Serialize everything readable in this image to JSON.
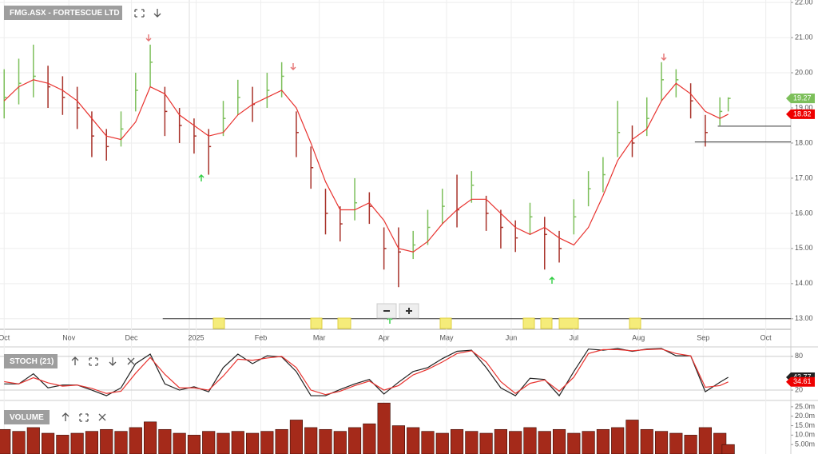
{
  "chart_data": [
    {
      "type": "ohlc",
      "title": "FMG.ASX - FORTESCUE LTD",
      "x": [
        0,
        7,
        14,
        21,
        28,
        35,
        42,
        49,
        56,
        63,
        70,
        77,
        84,
        91,
        98,
        105,
        112,
        119,
        126,
        133,
        140,
        147,
        154,
        161,
        168,
        175,
        182,
        189,
        196,
        203,
        210,
        217,
        224,
        231,
        238,
        245,
        252,
        259,
        266,
        273,
        280,
        287,
        294,
        301,
        308,
        315,
        322,
        329,
        336,
        343,
        347
      ],
      "xlim": [
        -2,
        377
      ],
      "xticks": [
        {
          "value": 0,
          "label": "Oct"
        },
        {
          "value": 31,
          "label": "Nov"
        },
        {
          "value": 61,
          "label": "Dec"
        },
        {
          "value": 92,
          "label": "2025"
        },
        {
          "value": 123,
          "label": "Feb"
        },
        {
          "value": 151,
          "label": "Mar"
        },
        {
          "value": 182,
          "label": "Apr"
        },
        {
          "value": 212,
          "label": "May"
        },
        {
          "value": 243,
          "label": "Jun"
        },
        {
          "value": 273,
          "label": "Jul"
        },
        {
          "value": 304,
          "label": "Aug"
        },
        {
          "value": 335,
          "label": "Sep"
        },
        {
          "value": 365,
          "label": "Oct"
        }
      ],
      "ylim": [
        12.7,
        22.07
      ],
      "yticks": [
        {
          "value": 13,
          "label": "13.00"
        },
        {
          "value": 14,
          "label": "14.00"
        },
        {
          "value": 15,
          "label": "15.00"
        },
        {
          "value": 16,
          "label": "16.00"
        },
        {
          "value": 17,
          "label": "17.00"
        },
        {
          "value": 18,
          "label": "18.00"
        },
        {
          "value": 19,
          "label": "19.00"
        },
        {
          "value": 20,
          "label": "20.00"
        },
        {
          "value": 21,
          "label": "21.00"
        },
        {
          "value": 22,
          "label": "22.00"
        }
      ],
      "grid": true,
      "series": [
        {
          "type": "ohlc",
          "color": "#7cbf5a",
          "down_color": "#a8322a",
          "high": [
            20.1,
            20.4,
            20.8,
            20.2,
            19.9,
            19.6,
            18.9,
            18.4,
            18.9,
            20.0,
            20.8,
            19.6,
            19.0,
            18.7,
            18.4,
            19.2,
            19.8,
            19.6,
            20.0,
            20.3,
            18.9,
            17.9,
            16.7,
            16.2,
            17.0,
            16.6,
            15.6,
            15.6,
            15.5,
            16.1,
            16.7,
            17.1,
            17.2,
            16.5,
            16.1,
            15.8,
            16.3,
            15.9,
            15.5,
            16.4,
            17.2,
            17.6,
            19.2,
            18.5,
            19.3,
            20.3,
            20.1,
            19.7,
            18.8,
            19.3,
            19.3
          ],
          "low": [
            18.7,
            19.1,
            19.3,
            19.0,
            18.8,
            18.4,
            17.6,
            17.5,
            17.9,
            18.9,
            19.6,
            18.2,
            18.0,
            17.7,
            17.1,
            18.2,
            18.8,
            18.6,
            19.0,
            19.3,
            17.6,
            16.7,
            15.4,
            15.2,
            15.8,
            15.7,
            14.4,
            13.9,
            14.7,
            15.1,
            15.7,
            15.6,
            16.3,
            15.5,
            15.0,
            14.9,
            15.4,
            14.4,
            14.6,
            15.4,
            16.2,
            16.6,
            17.6,
            17.6,
            18.2,
            19.2,
            19.3,
            18.7,
            17.9,
            18.5,
            18.9
          ],
          "values": [
            19.3,
            19.7,
            19.9,
            19.6,
            19.3,
            19.0,
            18.2,
            17.9,
            18.4,
            19.5,
            20.3,
            18.9,
            18.5,
            18.2,
            17.9,
            18.7,
            19.3,
            19.1,
            19.5,
            19.9,
            18.3,
            17.3,
            16.0,
            15.7,
            16.3,
            16.2,
            15.0,
            14.9,
            15.1,
            15.6,
            16.2,
            16.1,
            16.8,
            16.0,
            15.6,
            15.3,
            15.9,
            15.4,
            15.0,
            15.9,
            16.7,
            17.1,
            18.3,
            18.0,
            18.7,
            19.8,
            19.8,
            19.2,
            18.3,
            18.9,
            19.27
          ]
        },
        {
          "type": "line",
          "color": "#e8332f",
          "values": [
            19.2,
            19.6,
            19.8,
            19.7,
            19.5,
            19.2,
            18.7,
            18.2,
            18.1,
            18.6,
            19.6,
            19.4,
            18.8,
            18.5,
            18.2,
            18.3,
            18.8,
            19.1,
            19.3,
            19.5,
            19.0,
            18.0,
            16.9,
            16.1,
            16.1,
            16.3,
            15.8,
            15.0,
            14.9,
            15.2,
            15.7,
            16.1,
            16.4,
            16.4,
            16.0,
            15.6,
            15.4,
            15.6,
            15.3,
            15.1,
            15.6,
            16.5,
            17.5,
            18.1,
            18.4,
            19.2,
            19.7,
            19.4,
            18.9,
            18.7,
            18.82
          ]
        }
      ],
      "hlines": [
        {
          "value": 13.0,
          "x": 76
        },
        {
          "value": 18.03,
          "x": 331
        },
        {
          "value": 18.48,
          "x": 342
        }
      ]
    },
    {
      "type": "line",
      "title": "STOCH (21)",
      "ylim": [
        3,
        94
      ],
      "yticks": [
        20,
        80
      ],
      "series": [
        {
          "color": "#222222",
          "values": [
            31,
            31,
            49,
            24,
            29,
            29,
            20,
            10,
            24,
            67,
            84,
            31,
            20,
            26,
            17,
            60,
            84,
            67,
            81,
            79,
            53,
            10,
            10,
            21,
            31,
            39,
            13,
            34,
            53,
            60,
            76,
            89,
            91,
            60,
            24,
            10,
            41,
            39,
            10,
            53,
            93,
            91,
            94,
            89,
            93,
            94,
            81,
            81,
            17,
            34,
            42.77
          ]
        },
        {
          "color": "#e8332f",
          "values": [
            35,
            31,
            42,
            33,
            27,
            29,
            23,
            14,
            18,
            50,
            78,
            48,
            24,
            24,
            20,
            45,
            75,
            73,
            77,
            80,
            60,
            20,
            12,
            18,
            28,
            36,
            20,
            28,
            47,
            57,
            70,
            85,
            90,
            70,
            35,
            14,
            32,
            38,
            18,
            43,
            85,
            92,
            92,
            90,
            92,
            93,
            85,
            81,
            25,
            28,
            34.61
          ]
        }
      ]
    },
    {
      "type": "bar",
      "title": "VOLUME",
      "color": "#a52a1a",
      "ylim": [
        0,
        27.5
      ],
      "yticks": [
        {
          "value": 5,
          "label": "5.00m"
        },
        {
          "value": 10,
          "label": "10.0m"
        },
        {
          "value": 15,
          "label": "15.0m"
        },
        {
          "value": 20,
          "label": "20.0m"
        },
        {
          "value": 25,
          "label": "25.0m"
        }
      ],
      "values": [
        13,
        12,
        14,
        11,
        10,
        11,
        12,
        13,
        12,
        14,
        17,
        13,
        11,
        10,
        12,
        11,
        12,
        11,
        12,
        13,
        18,
        14,
        13,
        12,
        14,
        16,
        27,
        15,
        14,
        12,
        11,
        13,
        12,
        11,
        13,
        12,
        14,
        12,
        13,
        11,
        12,
        13,
        14,
        18,
        13,
        12,
        11,
        10,
        14,
        11,
        5
      ]
    }
  ]
}
